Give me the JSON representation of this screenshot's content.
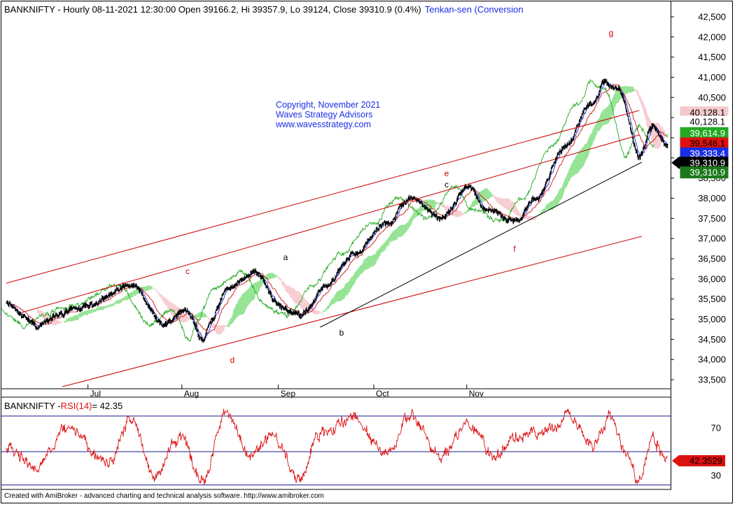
{
  "chart_data": [
    {
      "type": "candlestick",
      "title": "BANKNIFTY - Hourly 08-11-2021 12:30:00 Open 39166.2, Hi 39357.9, Lo 39124, Close 39310.9 (0.4%)",
      "indicator_title": "Tenkan-sen (Conversion",
      "ylim": [
        33100,
        42700
      ],
      "y_ticks": [
        "42,500",
        "42,000",
        "41,500",
        "41,000",
        "40,500",
        "40,000",
        "39,500",
        "39,000",
        "38,500",
        "38,000",
        "37,500",
        "37,000",
        "36,500",
        "36,000",
        "35,500",
        "35,000",
        "34,500",
        "34,000",
        "33,500"
      ],
      "y_tick_values": [
        42500,
        42000,
        41500,
        41000,
        40500,
        40000,
        39500,
        39000,
        38500,
        38000,
        37500,
        37000,
        36500,
        36000,
        35500,
        35000,
        34500,
        34000,
        33500
      ],
      "x_labels": [
        "Jul",
        "Aug",
        "Sep",
        "Oct",
        "Nov"
      ],
      "anchors": [
        {
          "t": 0,
          "v": 35400
        },
        {
          "t": 60,
          "v": 34850
        },
        {
          "t": 100,
          "v": 35100
        },
        {
          "t": 160,
          "v": 35350
        },
        {
          "t": 245,
          "v": 35900
        },
        {
          "t": 305,
          "v": 34850
        },
        {
          "t": 350,
          "v": 35150
        },
        {
          "t": 385,
          "v": 34450
        },
        {
          "t": 400,
          "v": 35000
        },
        {
          "t": 435,
          "v": 35800
        },
        {
          "t": 485,
          "v": 36150
        },
        {
          "t": 540,
          "v": 35300
        },
        {
          "t": 575,
          "v": 35050
        },
        {
          "t": 625,
          "v": 35850
        },
        {
          "t": 680,
          "v": 36600
        },
        {
          "t": 745,
          "v": 37300
        },
        {
          "t": 790,
          "v": 38000
        },
        {
          "t": 850,
          "v": 37550
        },
        {
          "t": 905,
          "v": 38300
        },
        {
          "t": 940,
          "v": 37700
        },
        {
          "t": 1000,
          "v": 37400
        },
        {
          "t": 1035,
          "v": 38000
        },
        {
          "t": 1095,
          "v": 39300
        },
        {
          "t": 1145,
          "v": 40300
        },
        {
          "t": 1170,
          "v": 40900
        },
        {
          "t": 1200,
          "v": 40650
        },
        {
          "t": 1240,
          "v": 39000
        },
        {
          "t": 1265,
          "v": 39800
        },
        {
          "t": 1295,
          "v": 39300
        }
      ],
      "wave_labels": [
        {
          "label": "c",
          "x": "2021-07-08",
          "y": 36100,
          "color": "#cc0000"
        },
        {
          "label": "d",
          "x": "2021-07-30",
          "y": 33950,
          "color": "#cc0000"
        },
        {
          "label": "a",
          "x": "2021-08-03",
          "y": 36500,
          "color": "#000000"
        },
        {
          "label": "b",
          "x": "2021-08-23",
          "y": 34650,
          "color": "#000000"
        },
        {
          "label": "e",
          "x": "2021-09-07",
          "y": 38850,
          "color": "#cc0000"
        },
        {
          "label": "c",
          "x": "2021-09-07",
          "y": 38600,
          "color": "#000000"
        },
        {
          "label": "f",
          "x": "2021-09-30",
          "y": 36850,
          "color": "#cc0000"
        },
        {
          "label": "g",
          "x": "2021-10-19",
          "y": 42050,
          "color": "#cc0000"
        }
      ],
      "price_tags": [
        {
          "value": "40,128.1",
          "y": 40128.1,
          "bg": "#f4c8cc",
          "fg": "#000000"
        },
        {
          "value": "40,128.1",
          "y": 39900,
          "bg": "#ffffff",
          "fg": "#000000"
        },
        {
          "value": "39,614.9",
          "y": 39614.9,
          "bg": "#22aa22",
          "fg": "#ffffff"
        },
        {
          "value": "39,546.1",
          "y": 39360,
          "bg": "#dd1111",
          "fg": "#000000"
        },
        {
          "value": "39,333.4",
          "y": 39110,
          "bg": "#1a2ee6",
          "fg": "#ffffff"
        },
        {
          "value": "39,310.9",
          "y": 38880,
          "bg": "#000000",
          "fg": "#ffffff"
        },
        {
          "value": "39,310.9",
          "y": 38640,
          "bg": "#1a7a1a",
          "fg": "#ffffff"
        }
      ],
      "copyright": [
        "Copyright, November 2021",
        "Waves Strategy Advisors",
        "www.wavesstrategy.com"
      ]
    },
    {
      "type": "line",
      "title": "BANKNIFTY - RSI(14) = 42.35",
      "title_prefix": "BANKNIFTY - ",
      "title_indicator": "RSI(14)",
      "title_suffix": " = 42.35",
      "ylim": [
        20,
        85
      ],
      "y_ticks": [
        "70",
        "30"
      ],
      "y_tick_values": [
        70,
        30
      ],
      "levels": [
        80,
        50,
        22
      ],
      "last_value": "42.3529",
      "anchors": [
        {
          "t": 0,
          "v": 52
        },
        {
          "t": 60,
          "v": 38
        },
        {
          "t": 120,
          "v": 70
        },
        {
          "t": 200,
          "v": 42
        },
        {
          "t": 245,
          "v": 78
        },
        {
          "t": 290,
          "v": 30
        },
        {
          "t": 340,
          "v": 62
        },
        {
          "t": 385,
          "v": 25
        },
        {
          "t": 430,
          "v": 83
        },
        {
          "t": 480,
          "v": 45
        },
        {
          "t": 520,
          "v": 65
        },
        {
          "t": 575,
          "v": 25
        },
        {
          "t": 610,
          "v": 64
        },
        {
          "t": 680,
          "v": 79
        },
        {
          "t": 745,
          "v": 48
        },
        {
          "t": 790,
          "v": 80
        },
        {
          "t": 850,
          "v": 46
        },
        {
          "t": 905,
          "v": 72
        },
        {
          "t": 960,
          "v": 45
        },
        {
          "t": 1000,
          "v": 62
        },
        {
          "t": 1060,
          "v": 66
        },
        {
          "t": 1100,
          "v": 82
        },
        {
          "t": 1150,
          "v": 55
        },
        {
          "t": 1180,
          "v": 79
        },
        {
          "t": 1215,
          "v": 48
        },
        {
          "t": 1240,
          "v": 25
        },
        {
          "t": 1265,
          "v": 60
        },
        {
          "t": 1295,
          "v": 42
        }
      ]
    }
  ],
  "footer": "Created with AmiBroker - advanced charting and technical analysis software. http://www.amibroker.com"
}
